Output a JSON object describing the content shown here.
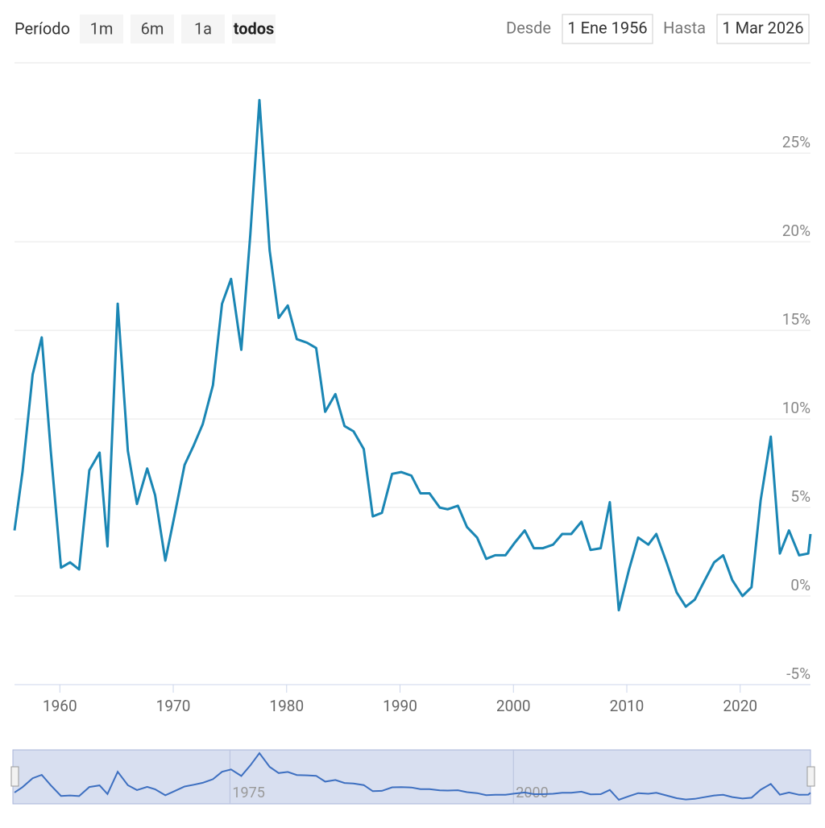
{
  "controls": {
    "period_label": "Período",
    "buttons": [
      "1m",
      "6m",
      "1a",
      "todos"
    ],
    "from_label": "Desde",
    "from_value": "1 Ene 1956",
    "to_label": "Hasta",
    "to_value": "1 Mar 2026"
  },
  "chart_data": {
    "type": "line",
    "color": "#1a86b4",
    "x": [
      1956.0,
      1956.7,
      1957.6,
      1958.4,
      1959.2,
      1960.1,
      1960.9,
      1961.7,
      1962.6,
      1963.5,
      1964.2,
      1965.1,
      1966.0,
      1966.8,
      1967.7,
      1968.4,
      1969.3,
      1970.1,
      1971.0,
      1971.8,
      1972.6,
      1973.5,
      1974.3,
      1975.1,
      1976.0,
      1976.8,
      1977.6,
      1978.5,
      1979.3,
      1980.1,
      1980.9,
      1981.8,
      1982.6,
      1983.4,
      1984.3,
      1985.1,
      1985.9,
      1986.8,
      1987.6,
      1988.4,
      1989.3,
      1990.1,
      1991.0,
      1991.8,
      1992.6,
      1993.5,
      1994.2,
      1995.1,
      1995.9,
      1996.8,
      1997.6,
      1998.4,
      1999.3,
      2000.1,
      2001.0,
      2001.8,
      2002.6,
      2003.5,
      2004.3,
      2005.1,
      2006.0,
      2006.8,
      2007.7,
      2008.5,
      2009.3,
      2010.2,
      2011.0,
      2011.9,
      2012.6,
      2013.5,
      2014.4,
      2015.2,
      2016.0,
      2016.8,
      2017.7,
      2018.5,
      2019.3,
      2020.2,
      2021.0,
      2021.8,
      2022.7,
      2023.5,
      2024.3,
      2025.2,
      2026.0,
      2026.2
    ],
    "values": [
      3.7,
      7.0,
      12.5,
      14.6,
      8.2,
      1.6,
      1.9,
      1.5,
      7.1,
      8.1,
      2.8,
      16.5,
      8.2,
      5.2,
      7.2,
      5.7,
      2.0,
      4.5,
      7.4,
      8.5,
      9.7,
      11.9,
      16.5,
      17.9,
      13.9,
      20.4,
      28.0,
      19.5,
      15.7,
      16.4,
      14.5,
      14.3,
      14.0,
      10.4,
      11.4,
      9.6,
      9.3,
      8.3,
      4.5,
      4.7,
      6.9,
      7.0,
      6.8,
      5.8,
      5.8,
      5.0,
      4.9,
      5.1,
      3.9,
      3.3,
      2.1,
      2.3,
      2.3,
      3.0,
      3.7,
      2.7,
      2.7,
      2.9,
      3.5,
      3.5,
      4.2,
      2.6,
      2.7,
      5.3,
      -0.8,
      1.5,
      3.3,
      2.9,
      3.5,
      1.9,
      0.2,
      -0.6,
      -0.2,
      0.8,
      1.9,
      2.3,
      0.9,
      0.0,
      0.5,
      5.4,
      9.0,
      2.4,
      3.7,
      2.3,
      2.4,
      3.5
    ],
    "xlim": [
      1956,
      2026.2
    ],
    "xticks": [
      1960,
      1970,
      1980,
      1990,
      2000,
      2010,
      2020
    ],
    "ylim": [
      -5,
      30.1
    ],
    "yticks": [
      {
        "value": -5,
        "label": "-5%"
      },
      {
        "value": 0,
        "label": "0%"
      },
      {
        "value": 5,
        "label": "5%"
      },
      {
        "value": 10,
        "label": "10%"
      },
      {
        "value": 15,
        "label": "15%"
      },
      {
        "value": 20,
        "label": "20%"
      },
      {
        "value": 25,
        "label": "25%"
      }
    ],
    "grid": true,
    "navigator": {
      "xticks": [
        {
          "value": 1975,
          "label": "1975"
        },
        {
          "value": 2000,
          "label": "2000"
        }
      ]
    }
  }
}
